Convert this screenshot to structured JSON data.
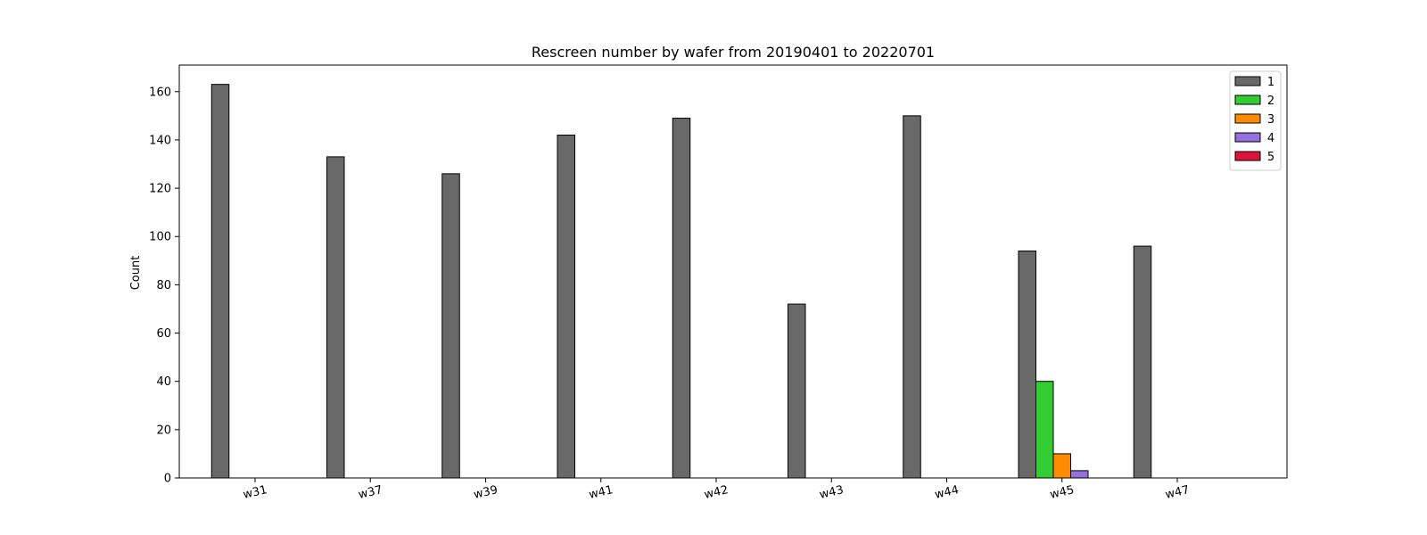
{
  "chart_data": {
    "type": "bar",
    "title": "Rescreen number  by wafer from 20190401 to 20220701",
    "xlabel": "",
    "ylabel": "Count",
    "ylim": [
      0,
      171
    ],
    "yticks": [
      0,
      20,
      40,
      60,
      80,
      100,
      120,
      140,
      160
    ],
    "categories": [
      "w31",
      "w37",
      "w39",
      "w41",
      "w42",
      "w43",
      "w44",
      "w45",
      "w47"
    ],
    "series": [
      {
        "name": "1",
        "color": "#696969",
        "values": [
          163,
          133,
          126,
          142,
          149,
          72,
          150,
          94,
          96
        ]
      },
      {
        "name": "2",
        "color": "#32cd32",
        "values": [
          0,
          0,
          0,
          0,
          0,
          0,
          0,
          40,
          0
        ]
      },
      {
        "name": "3",
        "color": "#ff8c00",
        "values": [
          0,
          0,
          0,
          0,
          0,
          0,
          0,
          10,
          0
        ]
      },
      {
        "name": "4",
        "color": "#9370db",
        "values": [
          0,
          0,
          0,
          0,
          0,
          0,
          0,
          3,
          0
        ]
      },
      {
        "name": "5",
        "color": "#dc143c",
        "values": [
          0,
          0,
          0,
          0,
          0,
          0,
          0,
          0,
          0
        ]
      }
    ],
    "legend_position": "top-right",
    "grid": false,
    "xtick_rotation": "slight"
  }
}
